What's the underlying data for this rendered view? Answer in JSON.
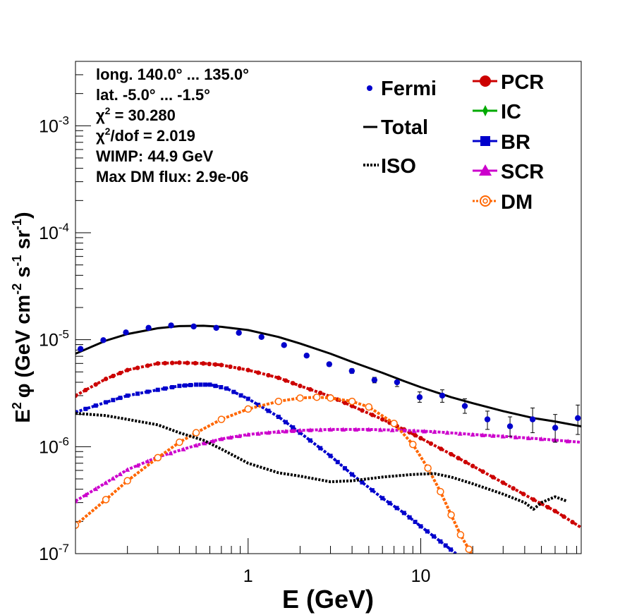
{
  "chart_data": {
    "type": "scatter",
    "x_scale": "log",
    "y_scale": "log",
    "xlabel": "E (GeV)",
    "ylabel_main": "E",
    "ylabel_exp": "2",
    "ylabel_phi": "φ (GeV cm",
    "ylabel_cm_exp": "-2",
    "ylabel_s": " s",
    "ylabel_s_exp": "-1",
    "ylabel_sr": " sr",
    "ylabel_sr_exp": "-1",
    "ylabel_close": ")",
    "xlim": [
      0.1,
      85
    ],
    "ylim": [
      1e-07,
      0.004
    ],
    "x_ticks": [
      {
        "value": 1,
        "label": "1"
      },
      {
        "value": 10,
        "label": "10"
      }
    ],
    "y_ticks": [
      {
        "value": 1e-07,
        "base": "10",
        "exp": "-7"
      },
      {
        "value": 1e-06,
        "base": "10",
        "exp": "-6"
      },
      {
        "value": 1e-05,
        "base": "10",
        "exp": "-5"
      },
      {
        "value": 0.0001,
        "base": "10",
        "exp": "-4"
      },
      {
        "value": 0.001,
        "base": "10",
        "exp": "-3"
      }
    ],
    "info_lines": [
      {
        "text": "long. 140.0° ... 135.0°"
      },
      {
        "text": "lat. -5.0° ... -1.5°"
      },
      {
        "pre": "χ",
        "sup": "2",
        "post": " = 30.280"
      },
      {
        "pre": "χ",
        "sup": "2",
        "post": "/dof = 2.019"
      },
      {
        "text": "WIMP: 44.9 GeV"
      },
      {
        "text": "Max DM flux: 2.9e-06"
      }
    ],
    "legend_left": [
      {
        "label": "Fermi",
        "symbol": "dot",
        "color": "#0000cc"
      },
      {
        "label": "Total",
        "symbol": "line",
        "color": "#000000"
      },
      {
        "label": "ISO",
        "symbol": "dotted",
        "color": "#000000"
      }
    ],
    "legend_right": [
      {
        "label": "PCR",
        "symbol": "circle",
        "color": "#cc0000"
      },
      {
        "label": "IC",
        "symbol": "diamond",
        "color": "#00aa00"
      },
      {
        "label": "BR",
        "symbol": "square",
        "color": "#0000cc"
      },
      {
        "label": "SCR",
        "symbol": "triangle",
        "color": "#cc00cc"
      },
      {
        "label": "DM",
        "symbol": "open-circle",
        "color": "#ff6600"
      }
    ],
    "fermi": {
      "x": [
        0.107,
        0.145,
        0.196,
        0.265,
        0.358,
        0.484,
        0.654,
        0.884,
        1.195,
        1.615,
        2.183,
        2.951,
        3.989,
        5.392,
        7.289,
        9.853,
        13.32,
        18.0,
        24.33,
        32.89,
        44.46,
        60.1,
        81.24
      ],
      "y": [
        8.2e-06,
        9.9e-06,
        1.17e-05,
        1.29e-05,
        1.36e-05,
        1.33e-05,
        1.29e-05,
        1.16e-05,
        1.06e-05,
        8.9e-06,
        7.1e-06,
        5.9e-06,
        5.1e-06,
        4.2e-06,
        4e-06,
        2.9e-06,
        3e-06,
        2.4e-06,
        1.8e-06,
        1.55e-06,
        1.8e-06,
        1.5e-06,
        1.85e-06
      ],
      "err_lo": [
        7.9e-06,
        9.6e-06,
        1.14e-05,
        1.26e-05,
        1.33e-05,
        1.3e-05,
        1.26e-05,
        1.13e-05,
        1.03e-05,
        8.6e-06,
        6.85e-06,
        5.65e-06,
        4.85e-06,
        3.95e-06,
        3.65e-06,
        2.6e-06,
        2.6e-06,
        2.05e-06,
        1.45e-06,
        1.25e-06,
        1.35e-06,
        1.1e-06,
        1.3e-06
      ],
      "err_hi": [
        8.5e-06,
        1.02e-05,
        1.2e-05,
        1.32e-05,
        1.39e-05,
        1.36e-05,
        1.32e-05,
        1.19e-05,
        1.09e-05,
        9.2e-06,
        7.35e-06,
        6.15e-06,
        5.35e-06,
        4.45e-06,
        4.35e-06,
        3.25e-06,
        3.4e-06,
        2.8e-06,
        2.15e-06,
        1.9e-06,
        2.3e-06,
        2e-06,
        2.45e-06
      ]
    },
    "series": [
      {
        "name": "Total",
        "color": "#000000",
        "style": "solid",
        "x": [
          0.1,
          0.15,
          0.2,
          0.3,
          0.4,
          0.55,
          0.7,
          1.0,
          1.5,
          2.0,
          3.0,
          4.0,
          6.0,
          8.0,
          10.0,
          15.0,
          20.0,
          30.0,
          45.0,
          60.0,
          85.0
        ],
        "y": [
          7.4e-06,
          9.8e-06,
          1.13e-05,
          1.28e-05,
          1.34e-05,
          1.35e-05,
          1.32e-05,
          1.23e-05,
          1.06e-05,
          9.2e-06,
          7.4e-06,
          6.2e-06,
          4.9e-06,
          4.1e-06,
          3.6e-06,
          2.9e-06,
          2.55e-06,
          2.15e-06,
          1.85e-06,
          1.72e-06,
          1.55e-06
        ]
      },
      {
        "name": "PCR",
        "color": "#cc0000",
        "style": "dashdot",
        "x": [
          0.1,
          0.15,
          0.2,
          0.3,
          0.4,
          0.55,
          0.7,
          1.0,
          1.5,
          2.0,
          3.0,
          4.0,
          6.0,
          8.0,
          10.0,
          15.0,
          20.0,
          30.0,
          45.0,
          60.0,
          85.0
        ],
        "y": [
          3e-06,
          4.3e-06,
          5.2e-06,
          6e-06,
          6.1e-06,
          6e-06,
          5.8e-06,
          5.2e-06,
          4.4e-06,
          3.7e-06,
          2.95e-06,
          2.4e-06,
          1.8e-06,
          1.45e-06,
          1.2e-06,
          8.5e-07,
          6.6e-07,
          4.6e-07,
          3.2e-07,
          2.5e-07,
          1.75e-07
        ]
      },
      {
        "name": "BR",
        "color": "#0000cc",
        "style": "dashdot",
        "x": [
          0.1,
          0.15,
          0.2,
          0.3,
          0.4,
          0.5,
          0.6,
          0.75,
          1.0,
          1.5,
          2.0,
          3.0,
          4.0,
          6.0,
          8.0,
          10.0,
          13.0,
          16.0
        ],
        "y": [
          2.1e-06,
          2.6e-06,
          3e-06,
          3.4e-06,
          3.7e-06,
          3.8e-06,
          3.8e-06,
          3.5e-06,
          2.8e-06,
          1.9e-06,
          1.35e-06,
          8.2e-07,
          5.5e-07,
          3.3e-07,
          2.4e-07,
          1.8e-07,
          1.3e-07,
          1e-07
        ]
      },
      {
        "name": "SCR",
        "color": "#cc00cc",
        "style": "dashdot",
        "x": [
          0.1,
          0.15,
          0.2,
          0.3,
          0.5,
          0.7,
          1.0,
          1.5,
          2.0,
          3.0,
          5.0,
          8.0,
          12.0,
          20.0,
          30.0,
          50.0,
          85.0
        ],
        "y": [
          3.1e-07,
          4.6e-07,
          6.1e-07,
          8e-07,
          1.03e-06,
          1.18e-06,
          1.3e-06,
          1.38e-06,
          1.42e-06,
          1.45e-06,
          1.45e-06,
          1.42e-06,
          1.38e-06,
          1.3e-06,
          1.25e-06,
          1.18e-06,
          1.1e-06
        ]
      },
      {
        "name": "DM",
        "color": "#ff6600",
        "style": "dashdot",
        "x": [
          0.1,
          0.15,
          0.2,
          0.3,
          0.4,
          0.5,
          0.7,
          1.0,
          1.5,
          2.0,
          2.5,
          3.0,
          4.0,
          5.0,
          7.0,
          9.0,
          11.0,
          13.0,
          15.0,
          17.0,
          19.0,
          21.0
        ],
        "y": [
          1.85e-07,
          3.2e-07,
          4.8e-07,
          7.9e-07,
          1.1e-06,
          1.35e-06,
          1.8e-06,
          2.25e-06,
          2.65e-06,
          2.85e-06,
          2.9e-06,
          2.85e-06,
          2.65e-06,
          2.35e-06,
          1.65e-06,
          1.05e-06,
          6.3e-07,
          3.8e-07,
          2.3e-07,
          1.5e-07,
          1.1e-07,
          8e-08
        ]
      },
      {
        "name": "ISO",
        "color": "#000000",
        "style": "dotted",
        "x": [
          0.1,
          0.15,
          0.2,
          0.3,
          0.4,
          0.55,
          0.7,
          1.0,
          1.5,
          2.0,
          3.0,
          4.0,
          6.0,
          9.0,
          12.0,
          15.0,
          20.0,
          30.0,
          40.0,
          45.0,
          50.0,
          60.0,
          70.0
        ],
        "y": [
          2.05e-06,
          1.95e-06,
          1.8e-06,
          1.6e-06,
          1.35e-06,
          1.15e-06,
          9.5e-07,
          7e-07,
          5.7e-07,
          5.3e-07,
          4.7e-07,
          4.8e-07,
          5.2e-07,
          5.5e-07,
          5.6e-07,
          5.2e-07,
          4.5e-07,
          3.6e-07,
          3e-07,
          2.6e-07,
          3e-07,
          3.4e-07,
          3.1e-07
        ]
      }
    ]
  }
}
